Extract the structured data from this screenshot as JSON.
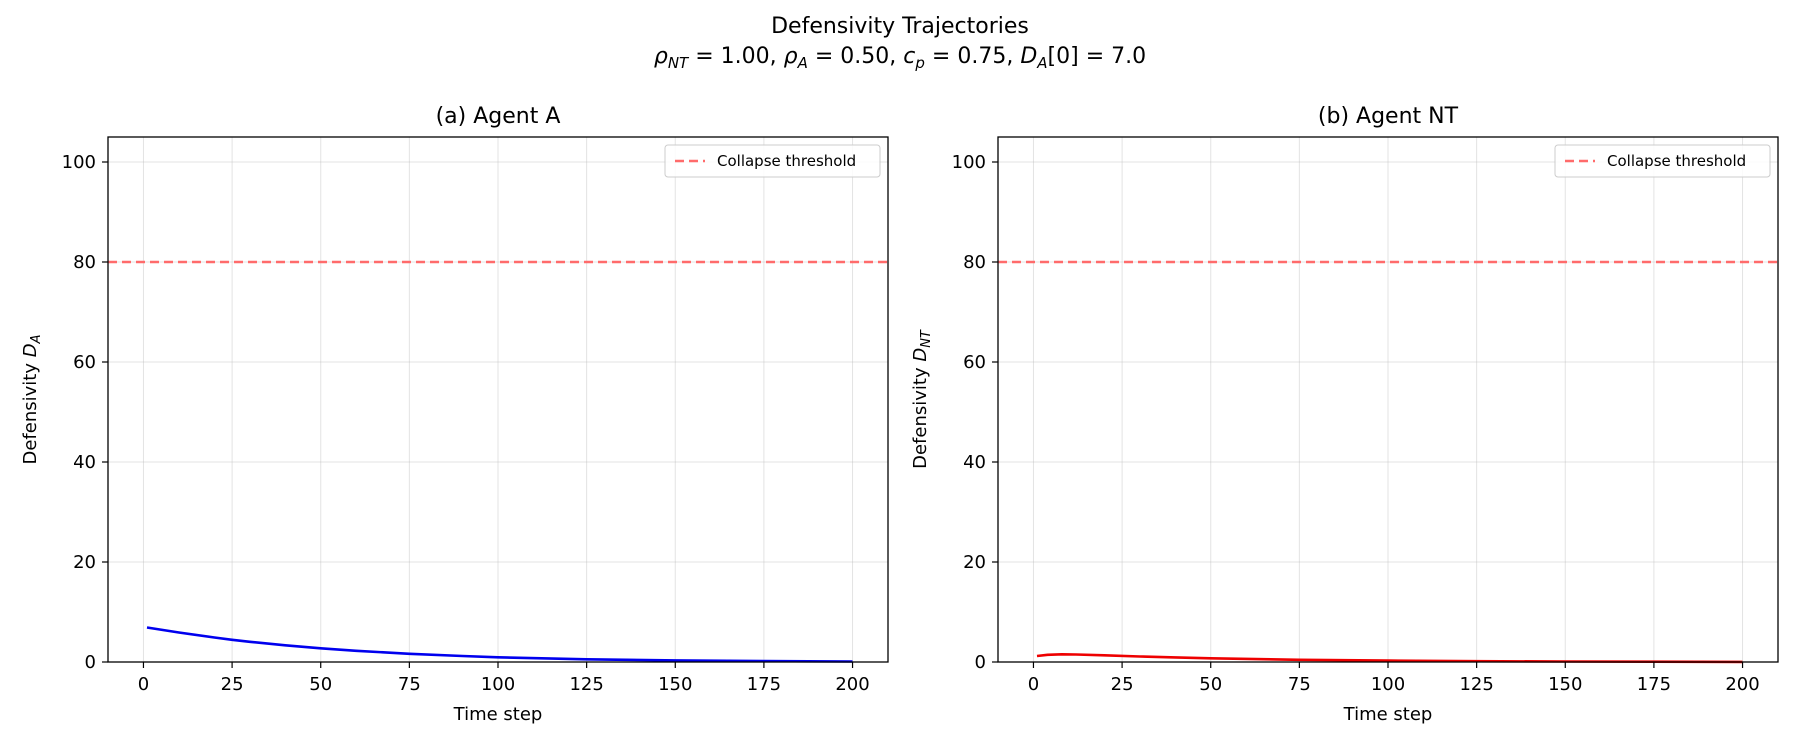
{
  "figure": {
    "title": "Defensivity Trajectories",
    "params": {
      "rho_nt": {
        "sym": "ρ",
        "sub": "NT",
        "value": "1.00"
      },
      "rho_a": {
        "sym": "ρ",
        "sub": "A",
        "value": "0.50"
      },
      "c_p": {
        "sym": "c",
        "sub": "p",
        "value": "0.75"
      },
      "d0": {
        "sym": "D",
        "sub": "A",
        "idx": "[0]",
        "value": "7.0"
      }
    }
  },
  "chart_data": [
    {
      "type": "line",
      "title": "(a) Agent A",
      "xlabel": "Time step",
      "ylabel_prefix": "Defensivity ",
      "ylabel_sym": "D",
      "ylabel_sub": "A",
      "xlim": [
        -10,
        210
      ],
      "ylim": [
        0,
        105
      ],
      "xticks": [
        0,
        25,
        50,
        75,
        100,
        125,
        150,
        175,
        200
      ],
      "yticks": [
        0,
        20,
        40,
        60,
        80,
        100
      ],
      "grid": true,
      "legend": "upper-right",
      "threshold": {
        "label": "Collapse threshold",
        "value": 80,
        "color": "#ff6b6b"
      },
      "series": [
        {
          "name": "D_A",
          "color": "#0000ee",
          "x": [
            1,
            10,
            20,
            25,
            30,
            40,
            50,
            60,
            75,
            90,
            100,
            125,
            150,
            175,
            200
          ],
          "y": [
            6.9,
            5.9,
            4.9,
            4.45,
            4.05,
            3.35,
            2.75,
            2.25,
            1.65,
            1.2,
            0.95,
            0.55,
            0.32,
            0.18,
            0.1
          ]
        }
      ]
    },
    {
      "type": "line",
      "title": "(b) Agent NT",
      "xlabel": "Time step",
      "ylabel_prefix": "Defensivity ",
      "ylabel_sym": "D",
      "ylabel_sub": "NT",
      "xlim": [
        -10,
        210
      ],
      "ylim": [
        0,
        105
      ],
      "xticks": [
        0,
        25,
        50,
        75,
        100,
        125,
        150,
        175,
        200
      ],
      "yticks": [
        0,
        20,
        40,
        60,
        80,
        100
      ],
      "grid": true,
      "legend": "upper-right",
      "threshold": {
        "label": "Collapse threshold",
        "value": 80,
        "color": "#ff6b6b"
      },
      "series": [
        {
          "name": "D_NT",
          "color": "#ee0000",
          "x": [
            1,
            4,
            8,
            12,
            20,
            30,
            40,
            50,
            75,
            100,
            125,
            150,
            175,
            200
          ],
          "y": [
            1.2,
            1.45,
            1.55,
            1.5,
            1.35,
            1.1,
            0.92,
            0.75,
            0.45,
            0.27,
            0.16,
            0.1,
            0.06,
            0.03
          ]
        }
      ]
    }
  ]
}
